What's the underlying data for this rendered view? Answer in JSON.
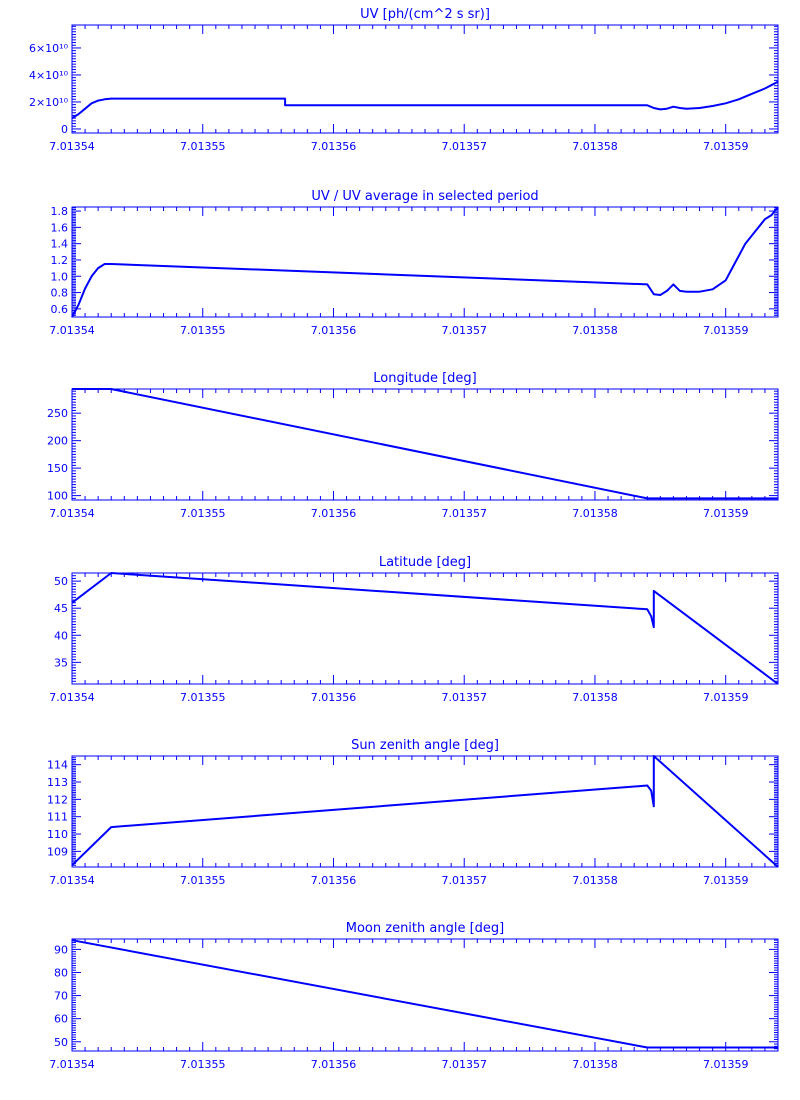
{
  "colors": {
    "axis": "#0000ff",
    "series": "#0000ff",
    "background": "#ffffff"
  },
  "x_tick_labels": [
    "7.01354",
    "7.01355",
    "7.01356",
    "7.01357",
    "7.01358",
    "7.01359"
  ],
  "chart_data": [
    {
      "type": "line",
      "title": "UV [ph/(cm^2 s sr)]",
      "xlim": [
        7.01354,
        7.013594
      ],
      "ylim": [
        -0.3,
        7.7
      ],
      "y_ticks": [
        0,
        2,
        4,
        6
      ],
      "y_tick_labels": [
        "0",
        "2×10¹⁰",
        "4×10¹⁰",
        "6×10¹⁰"
      ],
      "y_unit_factor": 10000000000.0,
      "x": [
        7.01354,
        7.0135405,
        7.013541,
        7.0135415,
        7.013542,
        7.0135425,
        7.013543,
        7.0135563,
        7.0135563,
        7.013584,
        7.0135845,
        7.013585,
        7.0135855,
        7.013586,
        7.0135865,
        7.013587,
        7.013588,
        7.013589,
        7.01359,
        7.013591,
        7.013592,
        7.013593,
        7.013594
      ],
      "y": [
        0.8,
        1.1,
        1.5,
        1.9,
        2.1,
        2.2,
        2.25,
        2.25,
        1.75,
        1.75,
        1.55,
        1.45,
        1.5,
        1.65,
        1.55,
        1.5,
        1.55,
        1.7,
        1.9,
        2.2,
        2.6,
        3.0,
        3.5
      ]
    },
    {
      "type": "line",
      "title": "UV / UV average in selected period",
      "xlim": [
        7.01354,
        7.013594
      ],
      "ylim": [
        0.5,
        1.85
      ],
      "y_ticks": [
        0.6,
        0.8,
        1.0,
        1.2,
        1.4,
        1.6,
        1.8
      ],
      "y_tick_labels": [
        "0.6",
        "0.8",
        "1.0",
        "1.2",
        "1.4",
        "1.6",
        "1.8"
      ],
      "x": [
        7.01354,
        7.0135405,
        7.013541,
        7.0135415,
        7.013542,
        7.0135425,
        7.013543,
        7.013584,
        7.0135845,
        7.013585,
        7.0135855,
        7.013586,
        7.0135865,
        7.013587,
        7.013588,
        7.013589,
        7.01359,
        7.0135905,
        7.013591,
        7.0135915,
        7.013592,
        7.0135925,
        7.013593,
        7.0135935,
        7.013594
      ],
      "y": [
        0.5,
        0.65,
        0.85,
        1.0,
        1.1,
        1.15,
        1.15,
        0.9,
        0.78,
        0.77,
        0.82,
        0.9,
        0.82,
        0.81,
        0.81,
        0.84,
        0.95,
        1.1,
        1.25,
        1.4,
        1.5,
        1.6,
        1.7,
        1.75,
        1.85
      ]
    },
    {
      "type": "line",
      "title": "Longitude [deg]",
      "xlim": [
        7.01354,
        7.013594
      ],
      "ylim": [
        92,
        294
      ],
      "y_ticks": [
        100,
        150,
        200,
        250
      ],
      "y_tick_labels": [
        "100",
        "150",
        "200",
        "250"
      ],
      "x": [
        7.01354,
        7.013543,
        7.013584,
        7.013594
      ],
      "y": [
        294,
        294,
        95,
        95
      ]
    },
    {
      "type": "line",
      "title": "Latitude [deg]",
      "xlim": [
        7.01354,
        7.013594
      ],
      "ylim": [
        31,
        51.5
      ],
      "y_ticks": [
        35,
        40,
        45,
        50
      ],
      "y_tick_labels": [
        "35",
        "40",
        "45",
        "50"
      ],
      "x": [
        7.01354,
        7.013543,
        7.013584,
        7.0135843,
        7.0135845,
        7.0135845,
        7.013594
      ],
      "y": [
        46,
        51.5,
        44.8,
        43.5,
        41.5,
        48.2,
        31
      ]
    },
    {
      "type": "line",
      "title": "Sun zenith angle [deg]",
      "xlim": [
        7.01354,
        7.013594
      ],
      "ylim": [
        108.1,
        114.5
      ],
      "y_ticks": [
        109,
        110,
        111,
        112,
        113,
        114
      ],
      "y_tick_labels": [
        "109",
        "110",
        "111",
        "112",
        "113",
        "114"
      ],
      "x": [
        7.01354,
        7.013543,
        7.013584,
        7.0135843,
        7.0135845,
        7.0135845,
        7.013594
      ],
      "y": [
        108.2,
        110.4,
        112.8,
        112.5,
        111.6,
        114.5,
        108.1
      ]
    },
    {
      "type": "line",
      "title": "Moon zenith angle [deg]",
      "xlim": [
        7.01354,
        7.013594
      ],
      "ylim": [
        46,
        94.5
      ],
      "y_ticks": [
        50,
        60,
        70,
        80,
        90
      ],
      "y_tick_labels": [
        "50",
        "60",
        "70",
        "80",
        "90"
      ],
      "x": [
        7.01354,
        7.013584,
        7.013594
      ],
      "y": [
        94,
        47.5,
        47.5
      ]
    }
  ]
}
